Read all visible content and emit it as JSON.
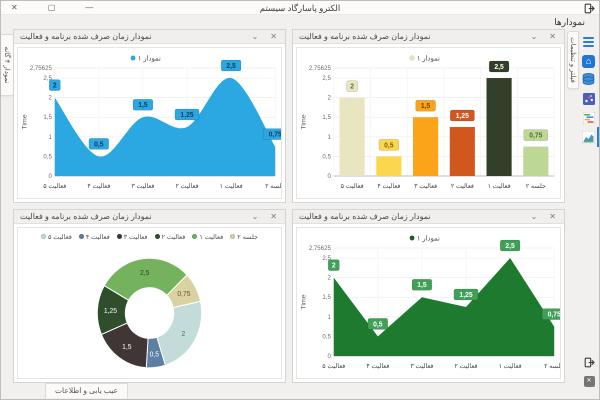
{
  "window": {
    "title": "الکترو پاسارگاد سیستم",
    "close_glyph": "✕",
    "maximize_glyph": "▢",
    "minimize_glyph": "—"
  },
  "header": {
    "page_title": "نمودارها"
  },
  "tabs": {
    "left_vertical": "نمودار ۴ گانه",
    "right_vertical": "فیلتر و تنظیمات",
    "bottom": "عیب یابی و اطلاعات"
  },
  "panel": {
    "title": "نمودار زمان صرف شده برنامه و فعالیت",
    "collapse_glyph": "⌄",
    "close_glyph": "✕"
  },
  "sidebar": {
    "icons": [
      "menu-icon",
      "home-icon",
      "database-icon",
      "scatter-chart-icon",
      "gantt-chart-icon",
      "trend-chart-icon"
    ],
    "bottom_icons": [
      "exit-icon",
      "close-box-icon"
    ],
    "accent_color": "#2b7cd3"
  },
  "chart_data": [
    {
      "type": "bar",
      "title": "نمودار زمان صرف شده برنامه و فعالیت",
      "legend": "نمودار ۱",
      "legend_color": "#e6e3bd",
      "ylabel": "Time",
      "ylim": [
        0,
        2.75625
      ],
      "ytick_labels": [
        "2,75625",
        "2,5",
        "2",
        "1,5",
        "1",
        "0,5",
        "0"
      ],
      "ytick_values": [
        2.75625,
        2.5,
        2,
        1.5,
        1,
        0.5,
        0
      ],
      "categories": [
        "فعالیت ۵",
        "فعالیت ۴",
        "فعالیت ۳",
        "فعالیت ۲",
        "فعالیت ۱",
        "جلسه ۲"
      ],
      "values": [
        2,
        0.5,
        1.5,
        1.25,
        2.5,
        0.75
      ],
      "value_labels": [
        "2",
        "0,5",
        "1,5",
        "1,25",
        "2,5",
        "0,75"
      ],
      "colors": [
        "#e8e5c0",
        "#fdd64f",
        "#fba319",
        "#d2571e",
        "#32402a",
        "#bdd795"
      ],
      "badge_text_colors": [
        "#6a6748",
        "#7a620f",
        "#6e4200",
        "#ffffff",
        "#ffffff",
        "#4f6b33"
      ]
    },
    {
      "type": "area-spline",
      "title": "نمودار زمان صرف شده برنامه و فعالیت",
      "legend": "نمودار ۱",
      "legend_color": "#2ba7e1",
      "ylabel": "Time",
      "ylim": [
        0,
        2.75625
      ],
      "ytick_labels": [
        "2,75625",
        "2,5",
        "2",
        "1,5",
        "1",
        "0,5",
        "0"
      ],
      "ytick_values": [
        2.75625,
        2.5,
        2,
        1.5,
        1,
        0.5,
        0
      ],
      "categories": [
        "فعالیت ۵",
        "فعالیت ۴",
        "فعالیت ۳",
        "فعالیت ۲",
        "فعالیت ۱",
        "جلسه ۲"
      ],
      "values": [
        2,
        0.5,
        1.5,
        1.25,
        2.5,
        0.75
      ],
      "value_labels": [
        "2",
        "0,5",
        "1,5",
        "1,25",
        "2,5",
        "0,75"
      ],
      "color": "#2ba7e1",
      "badge_bg": "#2ba7e1",
      "badge_fg": "#0f3c55"
    },
    {
      "type": "area",
      "title": "نمودار زمان صرف شده برنامه و فعالیت",
      "legend": "نمودار ۱",
      "legend_color": "#1e5c28",
      "ylabel": "Time",
      "ylim": [
        0,
        2.75625
      ],
      "ytick_labels": [
        "2,75625",
        "2,5",
        "2",
        "1,5",
        "1",
        "0,5",
        "0"
      ],
      "ytick_values": [
        2.75625,
        2.5,
        2,
        1.5,
        1,
        0.5,
        0
      ],
      "categories": [
        "فعالیت ۵",
        "فعالیت ۴",
        "فعالیت ۳",
        "فعالیت ۲",
        "فعالیت ۱",
        "جلسه ۲"
      ],
      "values": [
        2,
        0.5,
        1.5,
        1.25,
        2.5,
        0.75
      ],
      "value_labels": [
        "2",
        "0,5",
        "1,5",
        "1,25",
        "2,5",
        "0,75"
      ],
      "color": "#1e7a2f",
      "badge_bg": "#41a058",
      "badge_fg": "#ffffff"
    },
    {
      "type": "donut",
      "title": "نمودار زمان صرف شده برنامه و فعالیت",
      "legend": [
        {
          "label": "فعالیت ۵",
          "color": "#c3dcda"
        },
        {
          "label": "فعالیت ۴",
          "color": "#5d7fa3"
        },
        {
          "label": "فعالیت ۳",
          "color": "#403636"
        },
        {
          "label": "فعالیت ۲",
          "color": "#2f4e2c"
        },
        {
          "label": "فعالیت ۱",
          "color": "#74b25e"
        },
        {
          "label": "جلسه ۲",
          "color": "#dbd2a1"
        }
      ],
      "start_angle": -60,
      "slices": [
        {
          "label": "فعالیت ۱",
          "value": 2.5,
          "text": "2,5",
          "color": "#74b25e",
          "text_color": "#2c4320"
        },
        {
          "label": "جلسه ۲",
          "value": 0.75,
          "text": "0,75",
          "color": "#dbd2a1",
          "text_color": "#5d5638"
        },
        {
          "label": "فعالیت ۵",
          "value": 2,
          "text": "2",
          "color": "#c3dcda",
          "text_color": "#4e6664"
        },
        {
          "label": "فعالیت ۴",
          "value": 0.5,
          "text": "0,5",
          "color": "#5d7fa3",
          "text_color": "#ffffff"
        },
        {
          "label": "فعالیت ۳",
          "value": 1.5,
          "text": "1,5",
          "color": "#403636",
          "text_color": "#ffffff"
        },
        {
          "label": "فعالیت ۲",
          "value": 1.25,
          "text": "1,25",
          "color": "#2f4e2c",
          "text_color": "#ffffff"
        }
      ]
    }
  ]
}
